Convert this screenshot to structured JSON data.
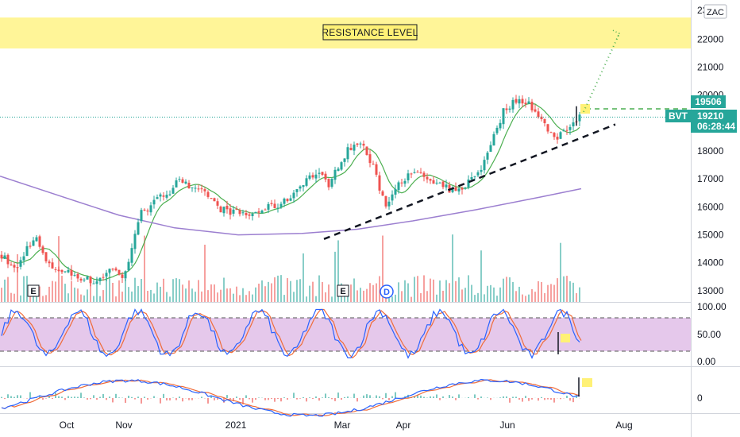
{
  "chart_data": {
    "type": "candlestick",
    "price_axis": {
      "ticks": [
        13000,
        14000,
        15000,
        16000,
        17000,
        18000,
        19000,
        20000,
        21000,
        22000
      ],
      "top_label_partial": "23",
      "range": [
        12600,
        23400
      ]
    },
    "time_axis": {
      "labels": [
        "Oct",
        "Nov",
        "2021",
        "Mar",
        "Apr",
        "Jun",
        "Aug"
      ]
    },
    "price_tags": {
      "upper": "19506",
      "current": "19210",
      "symbol": "BVT",
      "countdown": "06:28:44"
    },
    "currency_badge": "ZAC",
    "resistance": {
      "label": "RESISTANCE LEVEL",
      "low": 21650,
      "high": 22800
    },
    "earnings_markers": [
      "E",
      "E"
    ],
    "dividend_marker": "D",
    "trendline": {
      "from": [
        240,
        14850
      ],
      "to": [
        425,
        18950
      ]
    },
    "projection_target": 22200,
    "dashed_level": 19506,
    "dotted_level": 19210,
    "stochastic": {
      "ticks": [
        "100.00",
        "50.00",
        "0.00"
      ],
      "upper_band": 80,
      "lower_band": 20
    },
    "macd": {
      "ticks": [
        "0"
      ]
    },
    "colors": {
      "up": "#26a69a",
      "down": "#ef5350",
      "sma_slow": "#9c7fd0",
      "sma_fast": "#4caf50",
      "stoch_k": "#2962ff",
      "stoch_d": "#ef6c3a",
      "band_fill": "#e1bee7",
      "resistance_fill": "#fff176",
      "tag_green": "#26a69a"
    }
  }
}
